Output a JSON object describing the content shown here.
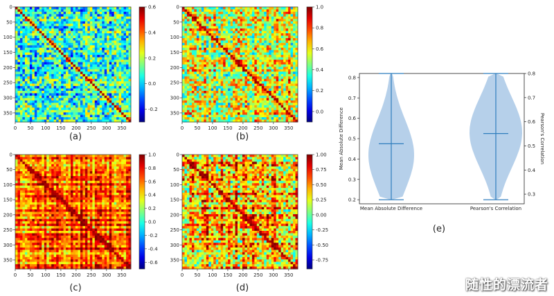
{
  "colors": {
    "violin_fill": "#a9c8e6",
    "violin_line": "#2f7dbd"
  },
  "chart_data": [
    {
      "type": "heatmap",
      "panel_label": "(a)",
      "x_ticks": [
        "0",
        "50",
        "100",
        "150",
        "200",
        "250",
        "300",
        "350"
      ],
      "y_ticks": [
        "0",
        "50",
        "100",
        "150",
        "200",
        "250",
        "300",
        "350"
      ],
      "matrix_size": 380,
      "colorbar": {
        "min": -0.3,
        "max": 0.6,
        "ticks": [
          "0.6",
          "0.4",
          "0.2",
          "0.0",
          "-0.2"
        ]
      }
    },
    {
      "type": "heatmap",
      "panel_label": "(b)",
      "x_ticks": [
        "0",
        "50",
        "100",
        "150",
        "200",
        "250",
        "300",
        "350"
      ],
      "y_ticks": [
        "0",
        "50",
        "100",
        "150",
        "200",
        "250",
        "300",
        "350"
      ],
      "matrix_size": 380,
      "colorbar": {
        "min": -0.1,
        "max": 1.0,
        "ticks": [
          "1.0",
          "0.8",
          "0.6",
          "0.4",
          "0.2",
          "0.0"
        ]
      }
    },
    {
      "type": "heatmap",
      "panel_label": "(c)",
      "x_ticks": [
        "0",
        "50",
        "100",
        "150",
        "200",
        "250",
        "300",
        "350"
      ],
      "y_ticks": [
        "0",
        "50",
        "100",
        "150",
        "200",
        "250",
        "300",
        "350"
      ],
      "matrix_size": 380,
      "colorbar": {
        "min": -0.7,
        "max": 1.0,
        "ticks": [
          "1.0",
          "0.8",
          "0.6",
          "0.4",
          "0.2",
          "0.0",
          "-0.2",
          "-0.4",
          "-0.6"
        ]
      }
    },
    {
      "type": "heatmap",
      "panel_label": "(d)",
      "x_ticks": [
        "0",
        "50",
        "100",
        "150",
        "200",
        "250",
        "300",
        "350"
      ],
      "y_ticks": [
        "0",
        "50",
        "100",
        "150",
        "200",
        "250",
        "300",
        "350"
      ],
      "matrix_size": 380,
      "colorbar": {
        "min": -0.9,
        "max": 1.0,
        "ticks": [
          "1.00",
          "0.75",
          "0.50",
          "0.25",
          "0.00",
          "-0.25",
          "-0.50",
          "-0.75"
        ]
      }
    },
    {
      "type": "violin",
      "panel_label": "(e)",
      "categories": [
        "Mean Absolute Difference",
        "Pearson's Correlation"
      ],
      "ylabel_left": "Mean Absolute Difference",
      "ylabel_right": "Pearson's Correlation",
      "left_axis": {
        "ylim": [
          0.18,
          0.82
        ],
        "ticks": [
          "0.2",
          "0.3",
          "0.4",
          "0.5",
          "0.6",
          "0.7",
          "0.8"
        ]
      },
      "right_axis": {
        "ylim": [
          0.26,
          0.8
        ],
        "ticks": [
          "0.3",
          "0.4",
          "0.5",
          "0.6",
          "0.7",
          "0.8"
        ]
      },
      "series": [
        {
          "min": 0.2,
          "max": 0.82,
          "mean": 0.475,
          "mode": 0.42
        },
        {
          "min": 0.2,
          "max": 0.82,
          "mean": 0.525,
          "mode": 0.53
        }
      ]
    }
  ],
  "watermark": "随性的漂流者"
}
